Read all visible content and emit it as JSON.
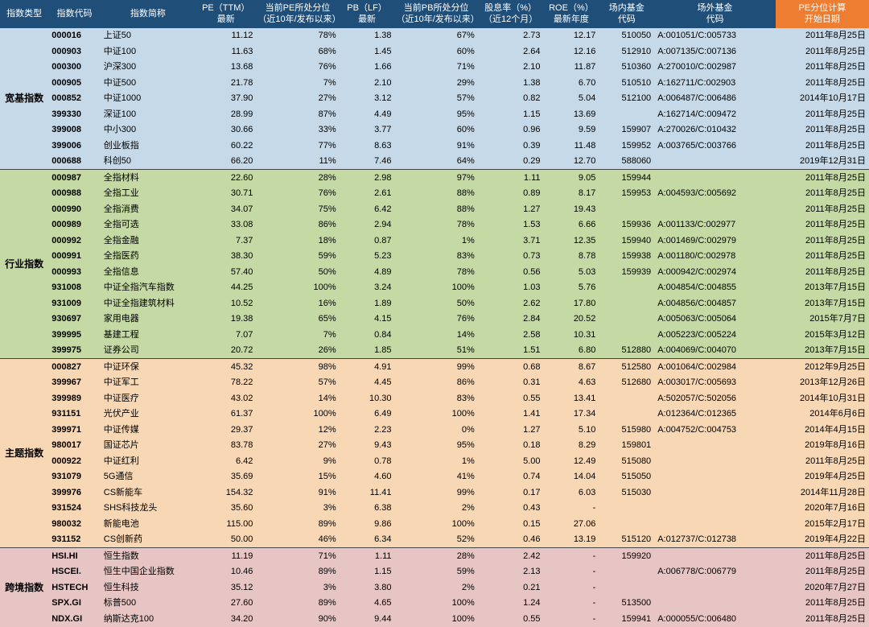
{
  "columns": [
    {
      "label": "指数类型",
      "accent": false
    },
    {
      "label": "指数代码",
      "accent": false
    },
    {
      "label": "指数简称",
      "accent": false
    },
    {
      "label": "PE（TTM）\n最新",
      "accent": false
    },
    {
      "label": "当前PE所处分位\n（近10年/发布以来）",
      "accent": false
    },
    {
      "label": "PB（LF）\n最新",
      "accent": false
    },
    {
      "label": "当前PB所处分位\n（近10年/发布以来）",
      "accent": false
    },
    {
      "label": "股息率（%）\n（近12个月）",
      "accent": false
    },
    {
      "label": "ROE（%）\n最新年度",
      "accent": false
    },
    {
      "label": "场内基金\n代码",
      "accent": false
    },
    {
      "label": "场外基金\n代码",
      "accent": false
    },
    {
      "label": "PE分位计算\n开始日期",
      "accent": true
    }
  ],
  "groups": [
    {
      "label": "宽基指数",
      "bg": "#c6d9e8",
      "rows": [
        {
          "code": "000016",
          "name": "上证50",
          "pe": "11.12",
          "pepct": "78%",
          "pb": "1.38",
          "pbpct": "67%",
          "div": "2.73",
          "roe": "12.17",
          "fundin": "510050",
          "fundout": "A:001051/C:005733",
          "date": "2011年8月25日"
        },
        {
          "code": "000903",
          "name": "中证100",
          "pe": "11.63",
          "pepct": "68%",
          "pb": "1.45",
          "pbpct": "60%",
          "div": "2.64",
          "roe": "12.16",
          "fundin": "512910",
          "fundout": "A:007135/C:007136",
          "date": "2011年8月25日"
        },
        {
          "code": "000300",
          "name": "沪深300",
          "pe": "13.68",
          "pepct": "76%",
          "pb": "1.66",
          "pbpct": "71%",
          "div": "2.10",
          "roe": "11.87",
          "fundin": "510360",
          "fundout": "A:270010/C:002987",
          "date": "2011年8月25日"
        },
        {
          "code": "000905",
          "name": "中证500",
          "pe": "21.78",
          "pepct": "7%",
          "pb": "2.10",
          "pbpct": "29%",
          "div": "1.38",
          "roe": "6.70",
          "fundin": "510510",
          "fundout": "A:162711/C:002903",
          "date": "2011年8月25日"
        },
        {
          "code": "000852",
          "name": "中证1000",
          "pe": "37.90",
          "pepct": "27%",
          "pb": "3.12",
          "pbpct": "57%",
          "div": "0.82",
          "roe": "5.04",
          "fundin": "512100",
          "fundout": "A:006487/C:006486",
          "date": "2014年10月17日"
        },
        {
          "code": "399330",
          "name": "深证100",
          "pe": "28.99",
          "pepct": "87%",
          "pb": "4.49",
          "pbpct": "95%",
          "div": "1.15",
          "roe": "13.69",
          "fundin": "",
          "fundout": "A:162714/C:009472",
          "date": "2011年8月25日"
        },
        {
          "code": "399008",
          "name": "中小300",
          "pe": "30.66",
          "pepct": "33%",
          "pb": "3.77",
          "pbpct": "60%",
          "div": "0.96",
          "roe": "9.59",
          "fundin": "159907",
          "fundout": "A:270026/C:010432",
          "date": "2011年8月25日"
        },
        {
          "code": "399006",
          "name": "创业板指",
          "pe": "60.22",
          "pepct": "77%",
          "pb": "8.63",
          "pbpct": "91%",
          "div": "0.39",
          "roe": "11.48",
          "fundin": "159952",
          "fundout": "A:003765/C:003766",
          "date": "2011年8月25日"
        },
        {
          "code": "000688",
          "name": "科创50",
          "pe": "66.20",
          "pepct": "11%",
          "pb": "7.46",
          "pbpct": "64%",
          "div": "0.29",
          "roe": "12.70",
          "fundin": "588060",
          "fundout": "",
          "date": "2019年12月31日"
        }
      ]
    },
    {
      "label": "行业指数",
      "bg": "#c5d9a5",
      "rows": [
        {
          "code": "000987",
          "name": "全指材料",
          "pe": "22.60",
          "pepct": "28%",
          "pb": "2.98",
          "pbpct": "97%",
          "div": "1.11",
          "roe": "9.05",
          "fundin": "159944",
          "fundout": "",
          "date": "2011年8月25日"
        },
        {
          "code": "000988",
          "name": "全指工业",
          "pe": "30.71",
          "pepct": "76%",
          "pb": "2.61",
          "pbpct": "88%",
          "div": "0.89",
          "roe": "8.17",
          "fundin": "159953",
          "fundout": "A:004593/C:005692",
          "date": "2011年8月25日"
        },
        {
          "code": "000990",
          "name": "全指消费",
          "pe": "34.07",
          "pepct": "75%",
          "pb": "6.42",
          "pbpct": "88%",
          "div": "1.27",
          "roe": "19.43",
          "fundin": "",
          "fundout": "",
          "date": "2011年8月25日"
        },
        {
          "code": "000989",
          "name": "全指可选",
          "pe": "33.08",
          "pepct": "86%",
          "pb": "2.94",
          "pbpct": "78%",
          "div": "1.53",
          "roe": "6.66",
          "fundin": "159936",
          "fundout": "A:001133/C:002977",
          "date": "2011年8月25日"
        },
        {
          "code": "000992",
          "name": "全指金融",
          "pe": "7.37",
          "pepct": "18%",
          "pb": "0.87",
          "pbpct": "1%",
          "div": "3.71",
          "roe": "12.35",
          "fundin": "159940",
          "fundout": "A:001469/C:002979",
          "date": "2011年8月25日"
        },
        {
          "code": "000991",
          "name": "全指医药",
          "pe": "38.30",
          "pepct": "59%",
          "pb": "5.23",
          "pbpct": "83%",
          "div": "0.73",
          "roe": "8.78",
          "fundin": "159938",
          "fundout": "A:001180/C:002978",
          "date": "2011年8月25日"
        },
        {
          "code": "000993",
          "name": "全指信息",
          "pe": "57.40",
          "pepct": "50%",
          "pb": "4.89",
          "pbpct": "78%",
          "div": "0.56",
          "roe": "5.03",
          "fundin": "159939",
          "fundout": "A:000942/C:002974",
          "date": "2011年8月25日"
        },
        {
          "code": "931008",
          "name": "中证全指汽车指数",
          "pe": "44.25",
          "pepct": "100%",
          "pb": "3.24",
          "pbpct": "100%",
          "div": "1.03",
          "roe": "5.76",
          "fundin": "",
          "fundout": "A:004854/C:004855",
          "date": "2013年7月15日"
        },
        {
          "code": "931009",
          "name": "中证全指建筑材料",
          "pe": "10.52",
          "pepct": "16%",
          "pb": "1.89",
          "pbpct": "50%",
          "div": "2.62",
          "roe": "17.80",
          "fundin": "",
          "fundout": "A:004856/C:004857",
          "date": "2013年7月15日"
        },
        {
          "code": "930697",
          "name": "家用电器",
          "pe": "19.38",
          "pepct": "65%",
          "pb": "4.15",
          "pbpct": "76%",
          "div": "2.84",
          "roe": "20.52",
          "fundin": "",
          "fundout": "A:005063/C:005064",
          "date": "2015年7月7日"
        },
        {
          "code": "399995",
          "name": "基建工程",
          "pe": "7.07",
          "pepct": "7%",
          "pb": "0.84",
          "pbpct": "14%",
          "div": "2.58",
          "roe": "10.31",
          "fundin": "",
          "fundout": "A:005223/C:005224",
          "date": "2015年3月12日"
        },
        {
          "code": "399975",
          "name": "证券公司",
          "pe": "20.72",
          "pepct": "26%",
          "pb": "1.85",
          "pbpct": "51%",
          "div": "1.51",
          "roe": "6.80",
          "fundin": "512880",
          "fundout": "A:004069/C:004070",
          "date": "2013年7月15日"
        }
      ]
    },
    {
      "label": "主题指数",
      "bg": "#f8d7b5",
      "rows": [
        {
          "code": "000827",
          "name": "中证环保",
          "pe": "45.32",
          "pepct": "98%",
          "pb": "4.91",
          "pbpct": "99%",
          "div": "0.68",
          "roe": "8.67",
          "fundin": "512580",
          "fundout": "A:001064/C:002984",
          "date": "2012年9月25日"
        },
        {
          "code": "399967",
          "name": "中证军工",
          "pe": "78.22",
          "pepct": "57%",
          "pb": "4.45",
          "pbpct": "86%",
          "div": "0.31",
          "roe": "4.63",
          "fundin": "512680",
          "fundout": "A:003017/C:005693",
          "date": "2013年12月26日"
        },
        {
          "code": "399989",
          "name": "中证医疗",
          "pe": "43.02",
          "pepct": "14%",
          "pb": "10.30",
          "pbpct": "83%",
          "div": "0.55",
          "roe": "13.41",
          "fundin": "",
          "fundout": "A:502057/C:502056",
          "date": "2014年10月31日"
        },
        {
          "code": "931151",
          "name": "光伏产业",
          "pe": "61.37",
          "pepct": "100%",
          "pb": "6.49",
          "pbpct": "100%",
          "div": "1.41",
          "roe": "17.34",
          "fundin": "",
          "fundout": "A:012364/C:012365",
          "date": "2014年6月6日"
        },
        {
          "code": "399971",
          "name": "中证传媒",
          "pe": "29.37",
          "pepct": "12%",
          "pb": "2.23",
          "pbpct": "0%",
          "div": "1.27",
          "roe": "5.10",
          "fundin": "515980",
          "fundout": "A:004752/C:004753",
          "date": "2014年4月15日"
        },
        {
          "code": "980017",
          "name": "国证芯片",
          "pe": "83.78",
          "pepct": "27%",
          "pb": "9.43",
          "pbpct": "95%",
          "div": "0.18",
          "roe": "8.29",
          "fundin": "159801",
          "fundout": "",
          "date": "2019年8月16日"
        },
        {
          "code": "000922",
          "name": "中证红利",
          "pe": "6.42",
          "pepct": "9%",
          "pb": "0.78",
          "pbpct": "1%",
          "div": "5.00",
          "roe": "12.49",
          "fundin": "515080",
          "fundout": "",
          "date": "2011年8月25日"
        },
        {
          "code": "931079",
          "name": "5G通信",
          "pe": "35.69",
          "pepct": "15%",
          "pb": "4.60",
          "pbpct": "41%",
          "div": "0.74",
          "roe": "14.04",
          "fundin": "515050",
          "fundout": "",
          "date": "2019年4月25日"
        },
        {
          "code": "399976",
          "name": "CS新能车",
          "pe": "154.32",
          "pepct": "91%",
          "pb": "11.41",
          "pbpct": "99%",
          "div": "0.17",
          "roe": "6.03",
          "fundin": "515030",
          "fundout": "",
          "date": "2014年11月28日"
        },
        {
          "code": "931524",
          "name": "SHS科技龙头",
          "pe": "35.60",
          "pepct": "3%",
          "pb": "6.38",
          "pbpct": "2%",
          "div": "0.43",
          "roe": "-",
          "fundin": "",
          "fundout": "",
          "date": "2020年7月16日"
        },
        {
          "code": "980032",
          "name": "新能电池",
          "pe": "115.00",
          "pepct": "89%",
          "pb": "9.86",
          "pbpct": "100%",
          "div": "0.15",
          "roe": "27.06",
          "fundin": "",
          "fundout": "",
          "date": "2015年2月17日"
        },
        {
          "code": "931152",
          "name": "CS创新药",
          "pe": "50.00",
          "pepct": "46%",
          "pb": "6.34",
          "pbpct": "52%",
          "div": "0.46",
          "roe": "13.19",
          "fundin": "515120",
          "fundout": "A:012737/C:012738",
          "date": "2019年4月22日"
        }
      ]
    },
    {
      "label": "跨境指数",
      "bg": "#e8c5c5",
      "rows": [
        {
          "code": "HSI.HI",
          "name": "恒生指数",
          "pe": "11.19",
          "pepct": "71%",
          "pb": "1.11",
          "pbpct": "28%",
          "div": "2.42",
          "roe": "-",
          "fundin": "159920",
          "fundout": "",
          "date": "2011年8月25日"
        },
        {
          "code": "HSCEI.",
          "name": "恒生中国企业指数",
          "pe": "10.46",
          "pepct": "89%",
          "pb": "1.15",
          "pbpct": "59%",
          "div": "2.13",
          "roe": "-",
          "fundin": "",
          "fundout": "A:006778/C:006779",
          "date": "2011年8月25日"
        },
        {
          "code": "HSTECH",
          "name": "恒生科技",
          "pe": "35.12",
          "pepct": "3%",
          "pb": "3.80",
          "pbpct": "2%",
          "div": "0.21",
          "roe": "-",
          "fundin": "",
          "fundout": "",
          "date": "2020年7月27日"
        },
        {
          "code": "SPX.GI",
          "name": "标普500",
          "pe": "27.60",
          "pepct": "89%",
          "pb": "4.65",
          "pbpct": "100%",
          "div": "1.24",
          "roe": "-",
          "fundin": "513500",
          "fundout": "",
          "date": "2011年8月25日"
        },
        {
          "code": "NDX.GI",
          "name": "纳斯达克100",
          "pe": "34.20",
          "pepct": "90%",
          "pb": "9.44",
          "pbpct": "100%",
          "div": "0.55",
          "roe": "-",
          "fundin": "159941",
          "fundout": "A:000055/C:006480",
          "date": "2011年8月25日"
        }
      ]
    }
  ]
}
